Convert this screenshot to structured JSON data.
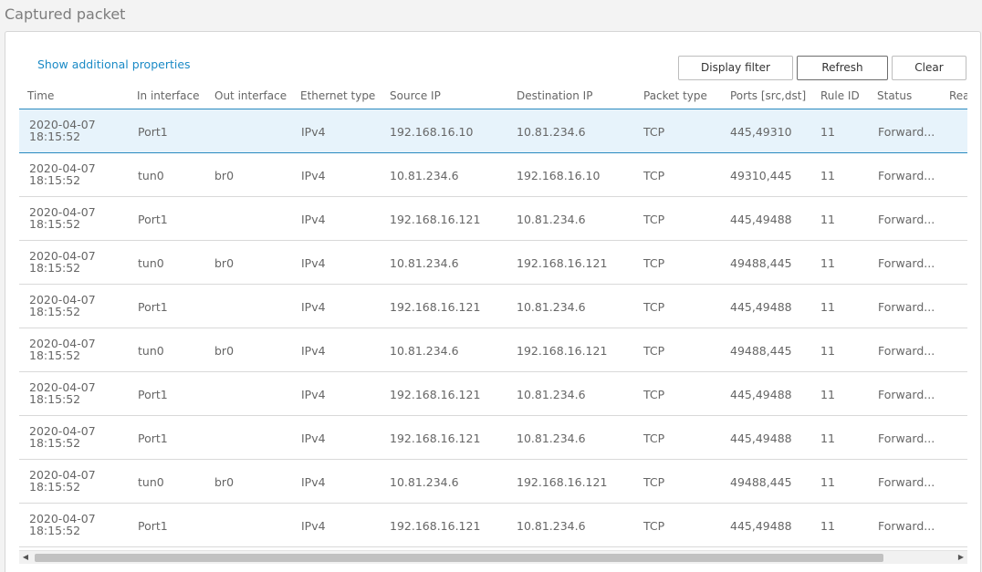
{
  "page": {
    "title": "Captured packet"
  },
  "toolbar": {
    "show_props_label": "Show additional properties",
    "display_filter_label": "Display filter",
    "refresh_label": "Refresh",
    "clear_label": "Clear"
  },
  "table": {
    "columns": [
      "Time",
      "In interface",
      "Out interface",
      "Ethernet type",
      "Source IP",
      "Destination IP",
      "Packet type",
      "Ports [src,dst]",
      "Rule ID",
      "Status",
      "Rea"
    ],
    "rows": [
      {
        "date": "2020-04-07",
        "time": "18:15:52",
        "in": "Port1",
        "out": "",
        "eth": "IPv4",
        "src": "192.168.16.10",
        "dst": "10.81.234.6",
        "ptype": "TCP",
        "ports": "445,49310",
        "rule": "11",
        "status": "Forward..."
      },
      {
        "date": "2020-04-07",
        "time": "18:15:52",
        "in": "tun0",
        "out": "br0",
        "eth": "IPv4",
        "src": "10.81.234.6",
        "dst": "192.168.16.10",
        "ptype": "TCP",
        "ports": "49310,445",
        "rule": "11",
        "status": "Forward..."
      },
      {
        "date": "2020-04-07",
        "time": "18:15:52",
        "in": "Port1",
        "out": "",
        "eth": "IPv4",
        "src": "192.168.16.121",
        "dst": "10.81.234.6",
        "ptype": "TCP",
        "ports": "445,49488",
        "rule": "11",
        "status": "Forward..."
      },
      {
        "date": "2020-04-07",
        "time": "18:15:52",
        "in": "tun0",
        "out": "br0",
        "eth": "IPv4",
        "src": "10.81.234.6",
        "dst": "192.168.16.121",
        "ptype": "TCP",
        "ports": "49488,445",
        "rule": "11",
        "status": "Forward..."
      },
      {
        "date": "2020-04-07",
        "time": "18:15:52",
        "in": "Port1",
        "out": "",
        "eth": "IPv4",
        "src": "192.168.16.121",
        "dst": "10.81.234.6",
        "ptype": "TCP",
        "ports": "445,49488",
        "rule": "11",
        "status": "Forward..."
      },
      {
        "date": "2020-04-07",
        "time": "18:15:52",
        "in": "tun0",
        "out": "br0",
        "eth": "IPv4",
        "src": "10.81.234.6",
        "dst": "192.168.16.121",
        "ptype": "TCP",
        "ports": "49488,445",
        "rule": "11",
        "status": "Forward..."
      },
      {
        "date": "2020-04-07",
        "time": "18:15:52",
        "in": "Port1",
        "out": "",
        "eth": "IPv4",
        "src": "192.168.16.121",
        "dst": "10.81.234.6",
        "ptype": "TCP",
        "ports": "445,49488",
        "rule": "11",
        "status": "Forward..."
      },
      {
        "date": "2020-04-07",
        "time": "18:15:52",
        "in": "Port1",
        "out": "",
        "eth": "IPv4",
        "src": "192.168.16.121",
        "dst": "10.81.234.6",
        "ptype": "TCP",
        "ports": "445,49488",
        "rule": "11",
        "status": "Forward..."
      },
      {
        "date": "2020-04-07",
        "time": "18:15:52",
        "in": "tun0",
        "out": "br0",
        "eth": "IPv4",
        "src": "10.81.234.6",
        "dst": "192.168.16.121",
        "ptype": "TCP",
        "ports": "49488,445",
        "rule": "11",
        "status": "Forward..."
      },
      {
        "date": "2020-04-07",
        "time": "18:15:52",
        "in": "Port1",
        "out": "",
        "eth": "IPv4",
        "src": "192.168.16.121",
        "dst": "10.81.234.6",
        "ptype": "TCP",
        "ports": "445,49488",
        "rule": "11",
        "status": "Forward..."
      }
    ],
    "selected_row": 0
  },
  "scrollbar": {
    "left_arrow": "◀",
    "right_arrow": "▶"
  },
  "colors": {
    "accent": "#1a8ac6",
    "selected_bg": "#e7f3fb",
    "selected_border": "#2a8ac0"
  }
}
